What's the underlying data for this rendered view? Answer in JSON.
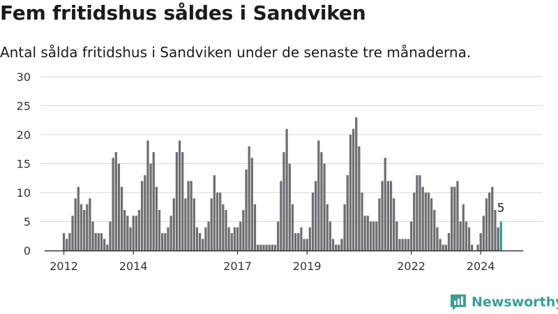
{
  "header": {
    "title": "Fem fritidshus såldes i Sandviken",
    "subtitle": "Antal sålda fritidshus i Sandviken under de senaste tre månaderna."
  },
  "brand": {
    "label": "Newsworthy",
    "icon": "bar-chart-logo-icon",
    "color": "#3a9e95"
  },
  "chart_data": {
    "type": "bar",
    "title": "Fem fritidshus såldes i Sandviken",
    "subtitle": "Antal sålda fritidshus i Sandviken under de senaste tre månaderna.",
    "xlabel": "",
    "ylabel": "",
    "ylim": [
      0,
      30
    ],
    "yticks": [
      0,
      5,
      10,
      15,
      20,
      25,
      30
    ],
    "grid": true,
    "legend": "none",
    "x_start": "2012-01",
    "x_end": "2024-10",
    "xticks": [
      {
        "label": "2012",
        "x": "2012-01"
      },
      {
        "label": "2014",
        "x": "2014-01"
      },
      {
        "label": "2017",
        "x": "2017-01"
      },
      {
        "label": "2019",
        "x": "2019-01"
      },
      {
        "label": "2022",
        "x": "2022-01"
      },
      {
        "label": "2024",
        "x": "2024-01"
      }
    ],
    "bar_color": "#6e6d72",
    "highlight_color": "#2a9d92",
    "values": [
      3,
      2,
      3,
      6,
      9,
      11,
      8,
      7,
      8,
      9,
      5,
      3,
      3,
      3,
      2,
      1,
      5,
      16,
      17,
      15,
      11,
      7,
      6,
      4,
      6,
      6,
      7,
      12,
      13,
      19,
      15,
      17,
      11,
      7,
      3,
      3,
      4,
      6,
      9,
      17,
      19,
      17,
      9,
      12,
      12,
      9,
      4,
      3,
      2,
      4,
      5,
      9,
      13,
      10,
      10,
      8,
      7,
      4,
      3,
      4,
      4,
      5,
      7,
      14,
      18,
      16,
      8,
      1,
      1,
      1,
      1,
      1,
      1,
      1,
      5,
      12,
      17,
      21,
      15,
      8,
      3,
      3,
      4,
      2,
      2,
      4,
      10,
      12,
      19,
      17,
      15,
      8,
      5,
      2,
      1,
      1,
      2,
      8,
      13,
      20,
      21,
      23,
      18,
      10,
      6,
      6,
      5,
      5,
      5,
      9,
      12,
      16,
      12,
      12,
      9,
      5,
      2,
      2,
      2,
      2,
      5,
      10,
      13,
      13,
      11,
      10,
      10,
      9,
      7,
      4,
      2,
      1,
      1,
      3,
      11,
      11,
      12,
      5,
      8,
      5,
      4,
      1,
      0,
      1,
      3,
      6,
      9,
      10,
      11,
      7,
      4,
      5
    ],
    "highlight_index": 151,
    "annotations": [
      {
        "index": 151,
        "text": "5"
      }
    ]
  }
}
